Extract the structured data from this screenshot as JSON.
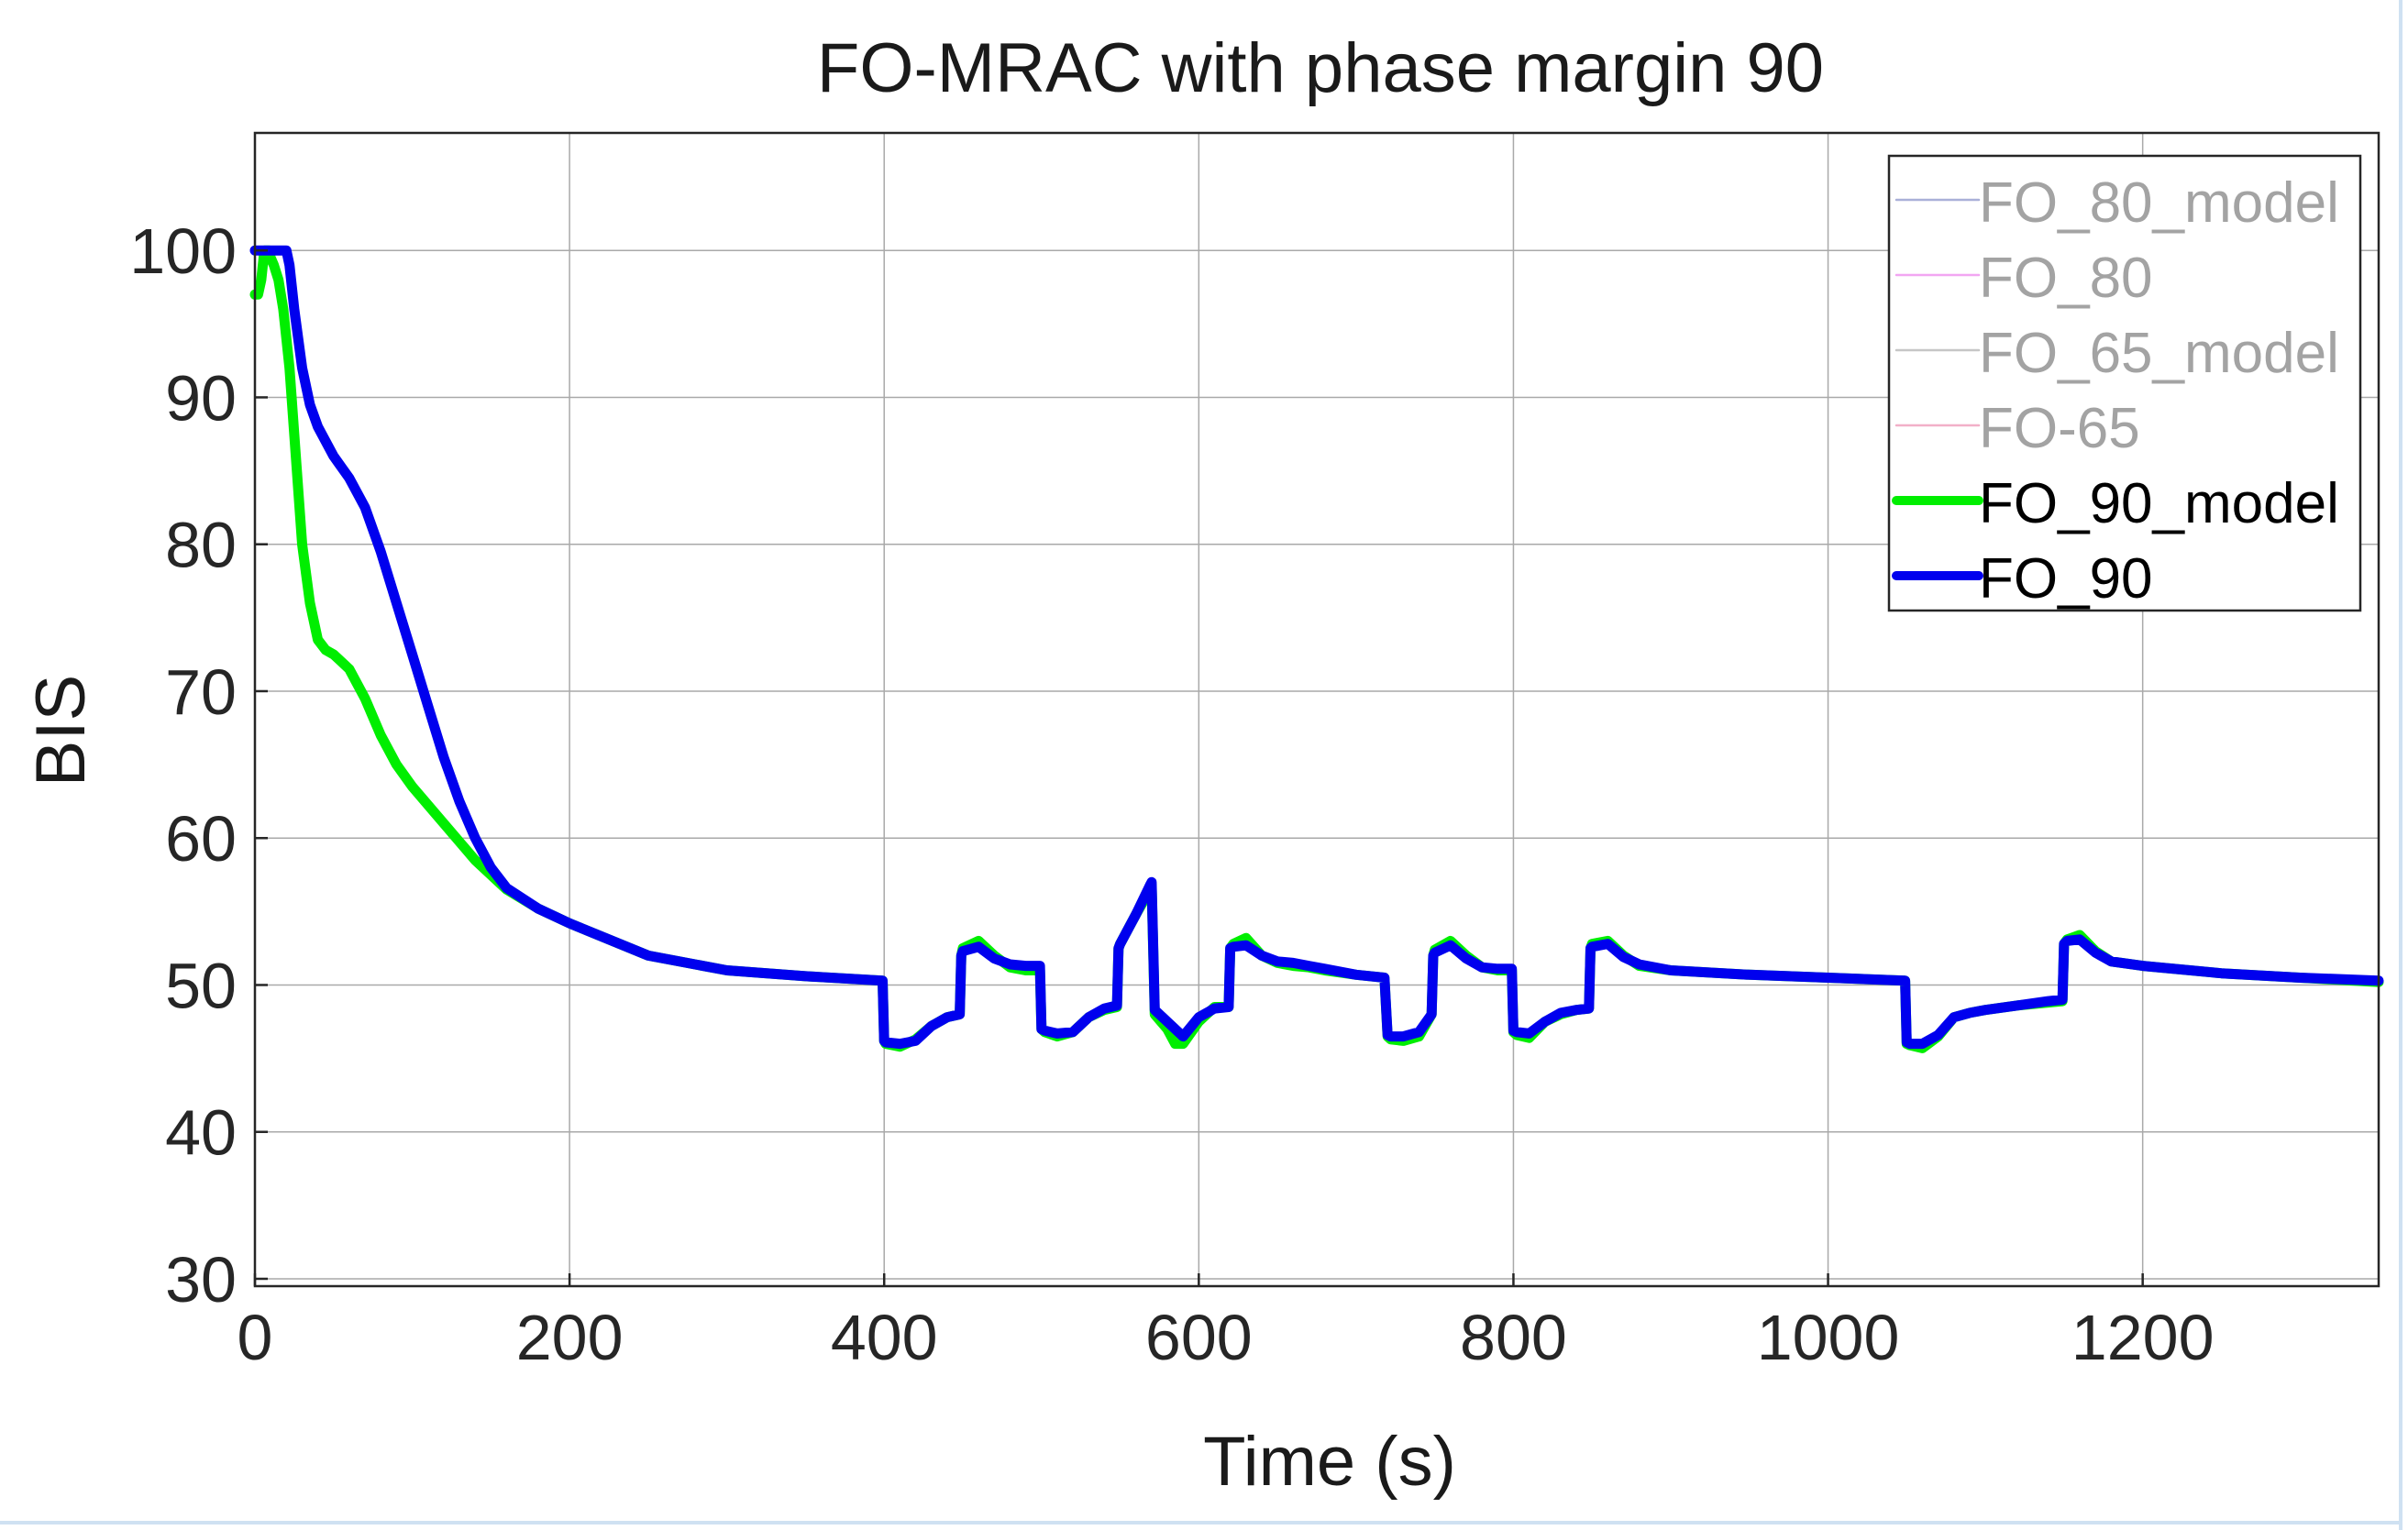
{
  "chart_data": {
    "type": "line",
    "title": "FO-MRAC with phase margin 90",
    "xlabel": "Time (s)",
    "ylabel": "BIS",
    "xlim": [
      0,
      1350
    ],
    "ylim": [
      29.5,
      108
    ],
    "xticks": [
      0,
      200,
      400,
      600,
      800,
      1000,
      1200
    ],
    "yticks": [
      30,
      40,
      50,
      60,
      70,
      80,
      90,
      100
    ],
    "grid": true,
    "legend_position": "top-right",
    "legend": [
      {
        "name": "FO_80_model",
        "color": "#aab0d8",
        "faded": true
      },
      {
        "name": "FO_80",
        "color": "#f2a6f2",
        "faded": true
      },
      {
        "name": "FO_65_model",
        "color": "#c6c6c6",
        "faded": true
      },
      {
        "name": "FO-65",
        "color": "#f2b0c8",
        "faded": true
      },
      {
        "name": "FO_90_model",
        "color": "#00ee00",
        "faded": false
      },
      {
        "name": "FO_90",
        "color": "#0000ee",
        "faded": false
      }
    ],
    "series": [
      {
        "name": "FO_90_model",
        "color": "#00ee00",
        "x": [
          0,
          2,
          4,
          6,
          8,
          9,
          10,
          12,
          15,
          18,
          22,
          26,
          30,
          35,
          40,
          45,
          50,
          55,
          60,
          70,
          80,
          90,
          100,
          120,
          140,
          160,
          180,
          200,
          250,
          300,
          350,
          399,
          400,
          401,
          410,
          420,
          430,
          440,
          448,
          449,
          450,
          460,
          470,
          480,
          490,
          499,
          500,
          502,
          510,
          520,
          530,
          540,
          548,
          549,
          550,
          560,
          569,
          570,
          572,
          580,
          585,
          590,
          600,
          610,
          619,
          620,
          622,
          630,
          640,
          650,
          660,
          670,
          680,
          700,
          718,
          720,
          722,
          730,
          740,
          748,
          749,
          750,
          760,
          770,
          780,
          790,
          799,
          800,
          802,
          810,
          820,
          830,
          840,
          848,
          849,
          850,
          860,
          870,
          880,
          900,
          950,
          1000,
          1049,
          1050,
          1052,
          1060,
          1070,
          1080,
          1090,
          1100,
          1120,
          1140,
          1149,
          1150,
          1152,
          1160,
          1170,
          1180,
          1200,
          1250,
          1300,
          1350
        ],
        "y": [
          97,
          97,
          98,
          100,
          100,
          100,
          99.5,
          99,
          98,
          96,
          92,
          86,
          80,
          76,
          73.5,
          72.8,
          72.5,
          72,
          71.5,
          69.5,
          67,
          65,
          63.5,
          61,
          58.5,
          56.5,
          55.2,
          54.2,
          52,
          51,
          50.6,
          50.3,
          46.2,
          46,
          45.8,
          46.3,
          47.2,
          47.8,
          48,
          52,
          52.5,
          53,
          52,
          51.2,
          51,
          51,
          47,
          46.8,
          46.5,
          46.8,
          47.8,
          48.3,
          48.5,
          52.5,
          52.8,
          54.8,
          56.5,
          56.8,
          48,
          47,
          46,
          46,
          47.5,
          48.5,
          48.5,
          52.5,
          52.8,
          53.2,
          52,
          51.5,
          51.3,
          51.2,
          51,
          50.7,
          50.5,
          46.5,
          46.3,
          46.2,
          46.5,
          48,
          52,
          52.4,
          53,
          52,
          51.2,
          51,
          51,
          46.8,
          46.6,
          46.4,
          47.5,
          48,
          48.3,
          48.4,
          52.5,
          52.8,
          53,
          52,
          51.3,
          51,
          50.7,
          50.5,
          50.3,
          46,
          45.9,
          45.7,
          46.5,
          47.8,
          48.1,
          48.3,
          48.6,
          48.8,
          48.9,
          52.8,
          53.1,
          53.4,
          52.3,
          51.6,
          51.3,
          50.8,
          50.5,
          50.2
        ]
      },
      {
        "name": "FO_90",
        "color": "#0000ee",
        "x": [
          0,
          10,
          15,
          20,
          22,
          25,
          30,
          35,
          40,
          50,
          60,
          70,
          80,
          90,
          100,
          110,
          120,
          130,
          140,
          150,
          160,
          180,
          200,
          250,
          300,
          350,
          399,
          400,
          401,
          410,
          420,
          430,
          440,
          448,
          449,
          450,
          460,
          470,
          480,
          490,
          499,
          500,
          502,
          510,
          520,
          530,
          540,
          548,
          549,
          550,
          560,
          569,
          570,
          572,
          580,
          590,
          600,
          610,
          619,
          620,
          622,
          630,
          640,
          650,
          660,
          670,
          680,
          700,
          718,
          720,
          722,
          730,
          740,
          748,
          749,
          750,
          760,
          770,
          780,
          790,
          799,
          800,
          802,
          810,
          820,
          830,
          840,
          848,
          849,
          850,
          860,
          870,
          880,
          900,
          950,
          1000,
          1049,
          1050,
          1052,
          1060,
          1070,
          1080,
          1090,
          1100,
          1120,
          1140,
          1149,
          1150,
          1152,
          1160,
          1170,
          1180,
          1200,
          1250,
          1300,
          1350
        ],
        "y": [
          100,
          100,
          100,
          100,
          99,
          96,
          92,
          89.5,
          88,
          86,
          84.5,
          82.5,
          79.5,
          76,
          72.5,
          69,
          65.5,
          62.5,
          60,
          58,
          56.6,
          55.2,
          54.2,
          52,
          51,
          50.6,
          50.3,
          46.2,
          46.1,
          46,
          46.2,
          47.2,
          47.8,
          48,
          52,
          52.3,
          52.6,
          51.8,
          51.4,
          51.3,
          51.3,
          47,
          46.9,
          46.7,
          46.8,
          47.8,
          48.4,
          48.6,
          52.5,
          52.8,
          54.8,
          56.8,
          57,
          48.3,
          47.5,
          46.5,
          47.8,
          48.4,
          48.5,
          52.5,
          52.6,
          52.7,
          52,
          51.6,
          51.5,
          51.3,
          51.1,
          50.7,
          50.5,
          46.6,
          46.5,
          46.5,
          46.8,
          48,
          52,
          52.2,
          52.7,
          51.8,
          51.2,
          51.1,
          51.1,
          46.9,
          46.8,
          46.7,
          47.5,
          48.1,
          48.3,
          48.4,
          52.5,
          52.6,
          52.8,
          51.9,
          51.4,
          51,
          50.7,
          50.5,
          50.3,
          46.1,
          46,
          46,
          46.6,
          47.8,
          48.1,
          48.3,
          48.6,
          48.9,
          49,
          52.8,
          53,
          53.1,
          52.2,
          51.6,
          51.3,
          50.8,
          50.5,
          50.3
        ]
      }
    ]
  }
}
